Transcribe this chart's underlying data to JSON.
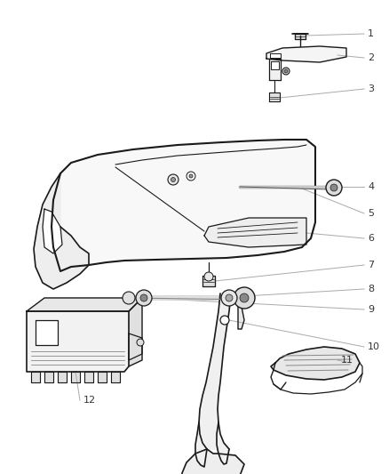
{
  "bg_color": "#ffffff",
  "line_color": "#1a1a1a",
  "label_color": "#333333",
  "leader_color": "#aaaaaa",
  "fig_width": 4.38,
  "fig_height": 5.33,
  "dpi": 100
}
